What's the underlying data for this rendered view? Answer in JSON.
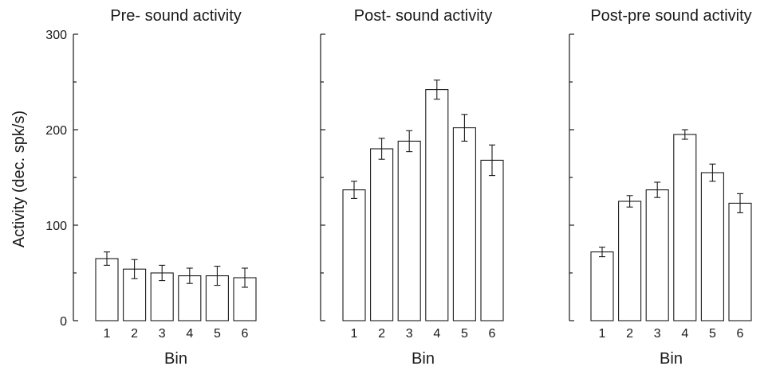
{
  "ylabel": "Activity (dec. spk/s)",
  "chart_data": [
    {
      "type": "bar",
      "title": "Pre- sound activity",
      "xlabel": "Bin",
      "categories": [
        "1",
        "2",
        "3",
        "4",
        "5",
        "6"
      ],
      "values": [
        65,
        54,
        50,
        47,
        47,
        45
      ],
      "errors": [
        7,
        10,
        8,
        8,
        10,
        10
      ],
      "ylim": [
        0,
        300
      ],
      "yticks": [
        "0",
        "100",
        "200",
        "300"
      ]
    },
    {
      "type": "bar",
      "title": "Post- sound activity",
      "xlabel": "Bin",
      "categories": [
        "1",
        "2",
        "3",
        "4",
        "5",
        "6"
      ],
      "values": [
        137,
        180,
        188,
        242,
        202,
        168
      ],
      "errors": [
        9,
        11,
        11,
        10,
        14,
        16
      ],
      "ylim": [
        0,
        300
      ],
      "yticks": []
    },
    {
      "type": "bar",
      "title": "Post-pre sound activity",
      "xlabel": "Bin",
      "categories": [
        "1",
        "2",
        "3",
        "4",
        "5",
        "6"
      ],
      "values": [
        72,
        125,
        137,
        195,
        155,
        123
      ],
      "errors": [
        5,
        6,
        8,
        5,
        9,
        10
      ],
      "ylim": [
        0,
        300
      ],
      "yticks": []
    }
  ]
}
